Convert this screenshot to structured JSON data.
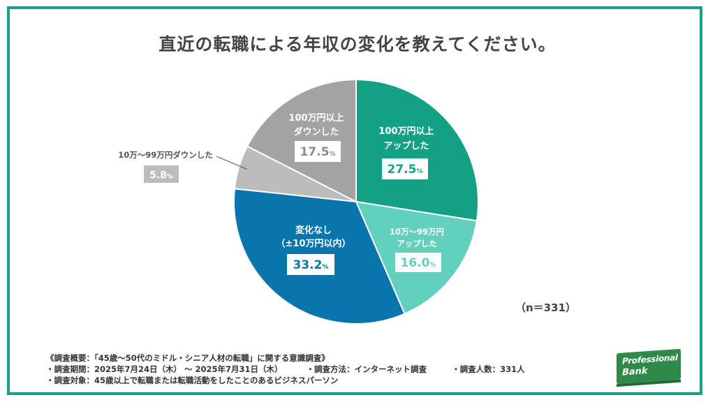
{
  "title": "直近の転職による年収の変化を教えてください。",
  "n_label": "（n＝331）",
  "chart_data": {
    "type": "pie",
    "title": "直近の転職による年収の変化を教えてください。",
    "unit": "%",
    "slices": [
      {
        "label": "100万円以上アップした",
        "label_lines": [
          "100万円以上",
          "アップした"
        ],
        "value": 27.5,
        "value_label": "27.5",
        "color": "#14a085"
      },
      {
        "label": "10万～99万円アップした",
        "label_lines": [
          "10万～99万円",
          "アップした"
        ],
        "value": 16.0,
        "value_label": "16.0",
        "color": "#62d0bd"
      },
      {
        "label": "変化なし（±10万円以内）",
        "label_lines": [
          "変化なし",
          "（±10万円以内）"
        ],
        "value": 33.2,
        "value_label": "33.2",
        "color": "#0876ad"
      },
      {
        "label": "10万～99万円ダウンした",
        "label_lines": [
          "10万～99万円ダウンした"
        ],
        "value": 5.8,
        "value_label": "5.8",
        "color": "#bcbcbc"
      },
      {
        "label": "100万円以上ダウンした",
        "label_lines": [
          "100万円以上",
          "ダウンした"
        ],
        "value": 17.5,
        "value_label": "17.5",
        "color": "#a3a3a3"
      }
    ]
  },
  "footer": {
    "line1": "《調査概要：「45歳～50代のミドル・シニア人材の転職」に関する意識調査》",
    "line2_period": "・調査期間：2025年7月24日（木） ～ 2025年7月31日（木）",
    "line2_method": "・調査方法：インターネット調査",
    "line2_count": "・調査人数：331人",
    "line3": "・調査対象：45歳以上で転職または転職活動をしたことのあるビジネスパーソン"
  },
  "logo": {
    "line1": "Professional",
    "line2": "Bank"
  }
}
